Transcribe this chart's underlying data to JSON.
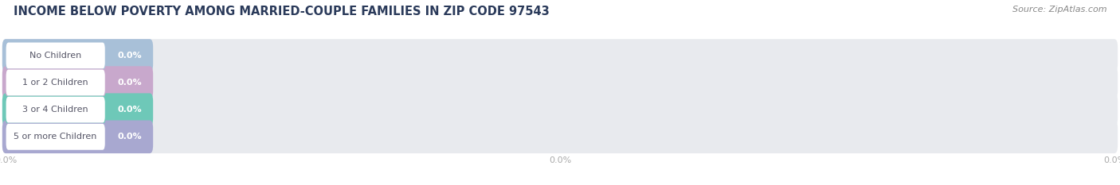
{
  "title": "INCOME BELOW POVERTY AMONG MARRIED-COUPLE FAMILIES IN ZIP CODE 97543",
  "source": "Source: ZipAtlas.com",
  "categories": [
    "No Children",
    "1 or 2 Children",
    "3 or 4 Children",
    "5 or more Children"
  ],
  "values": [
    0.0,
    0.0,
    0.0,
    0.0
  ],
  "bar_colors": [
    "#a8c0d8",
    "#c8a8cc",
    "#6ec8b8",
    "#a8a8d0"
  ],
  "background_color": "#ffffff",
  "bar_bg_color": "#e8eaee",
  "title_color": "#2a3a5a",
  "title_fontsize": 10.5,
  "source_fontsize": 8,
  "label_fontsize": 8,
  "value_fontsize": 8,
  "tick_fontsize": 8,
  "tick_color": "#aaaaaa",
  "label_text_color": "#555566",
  "grid_color": "#d8d8d8"
}
